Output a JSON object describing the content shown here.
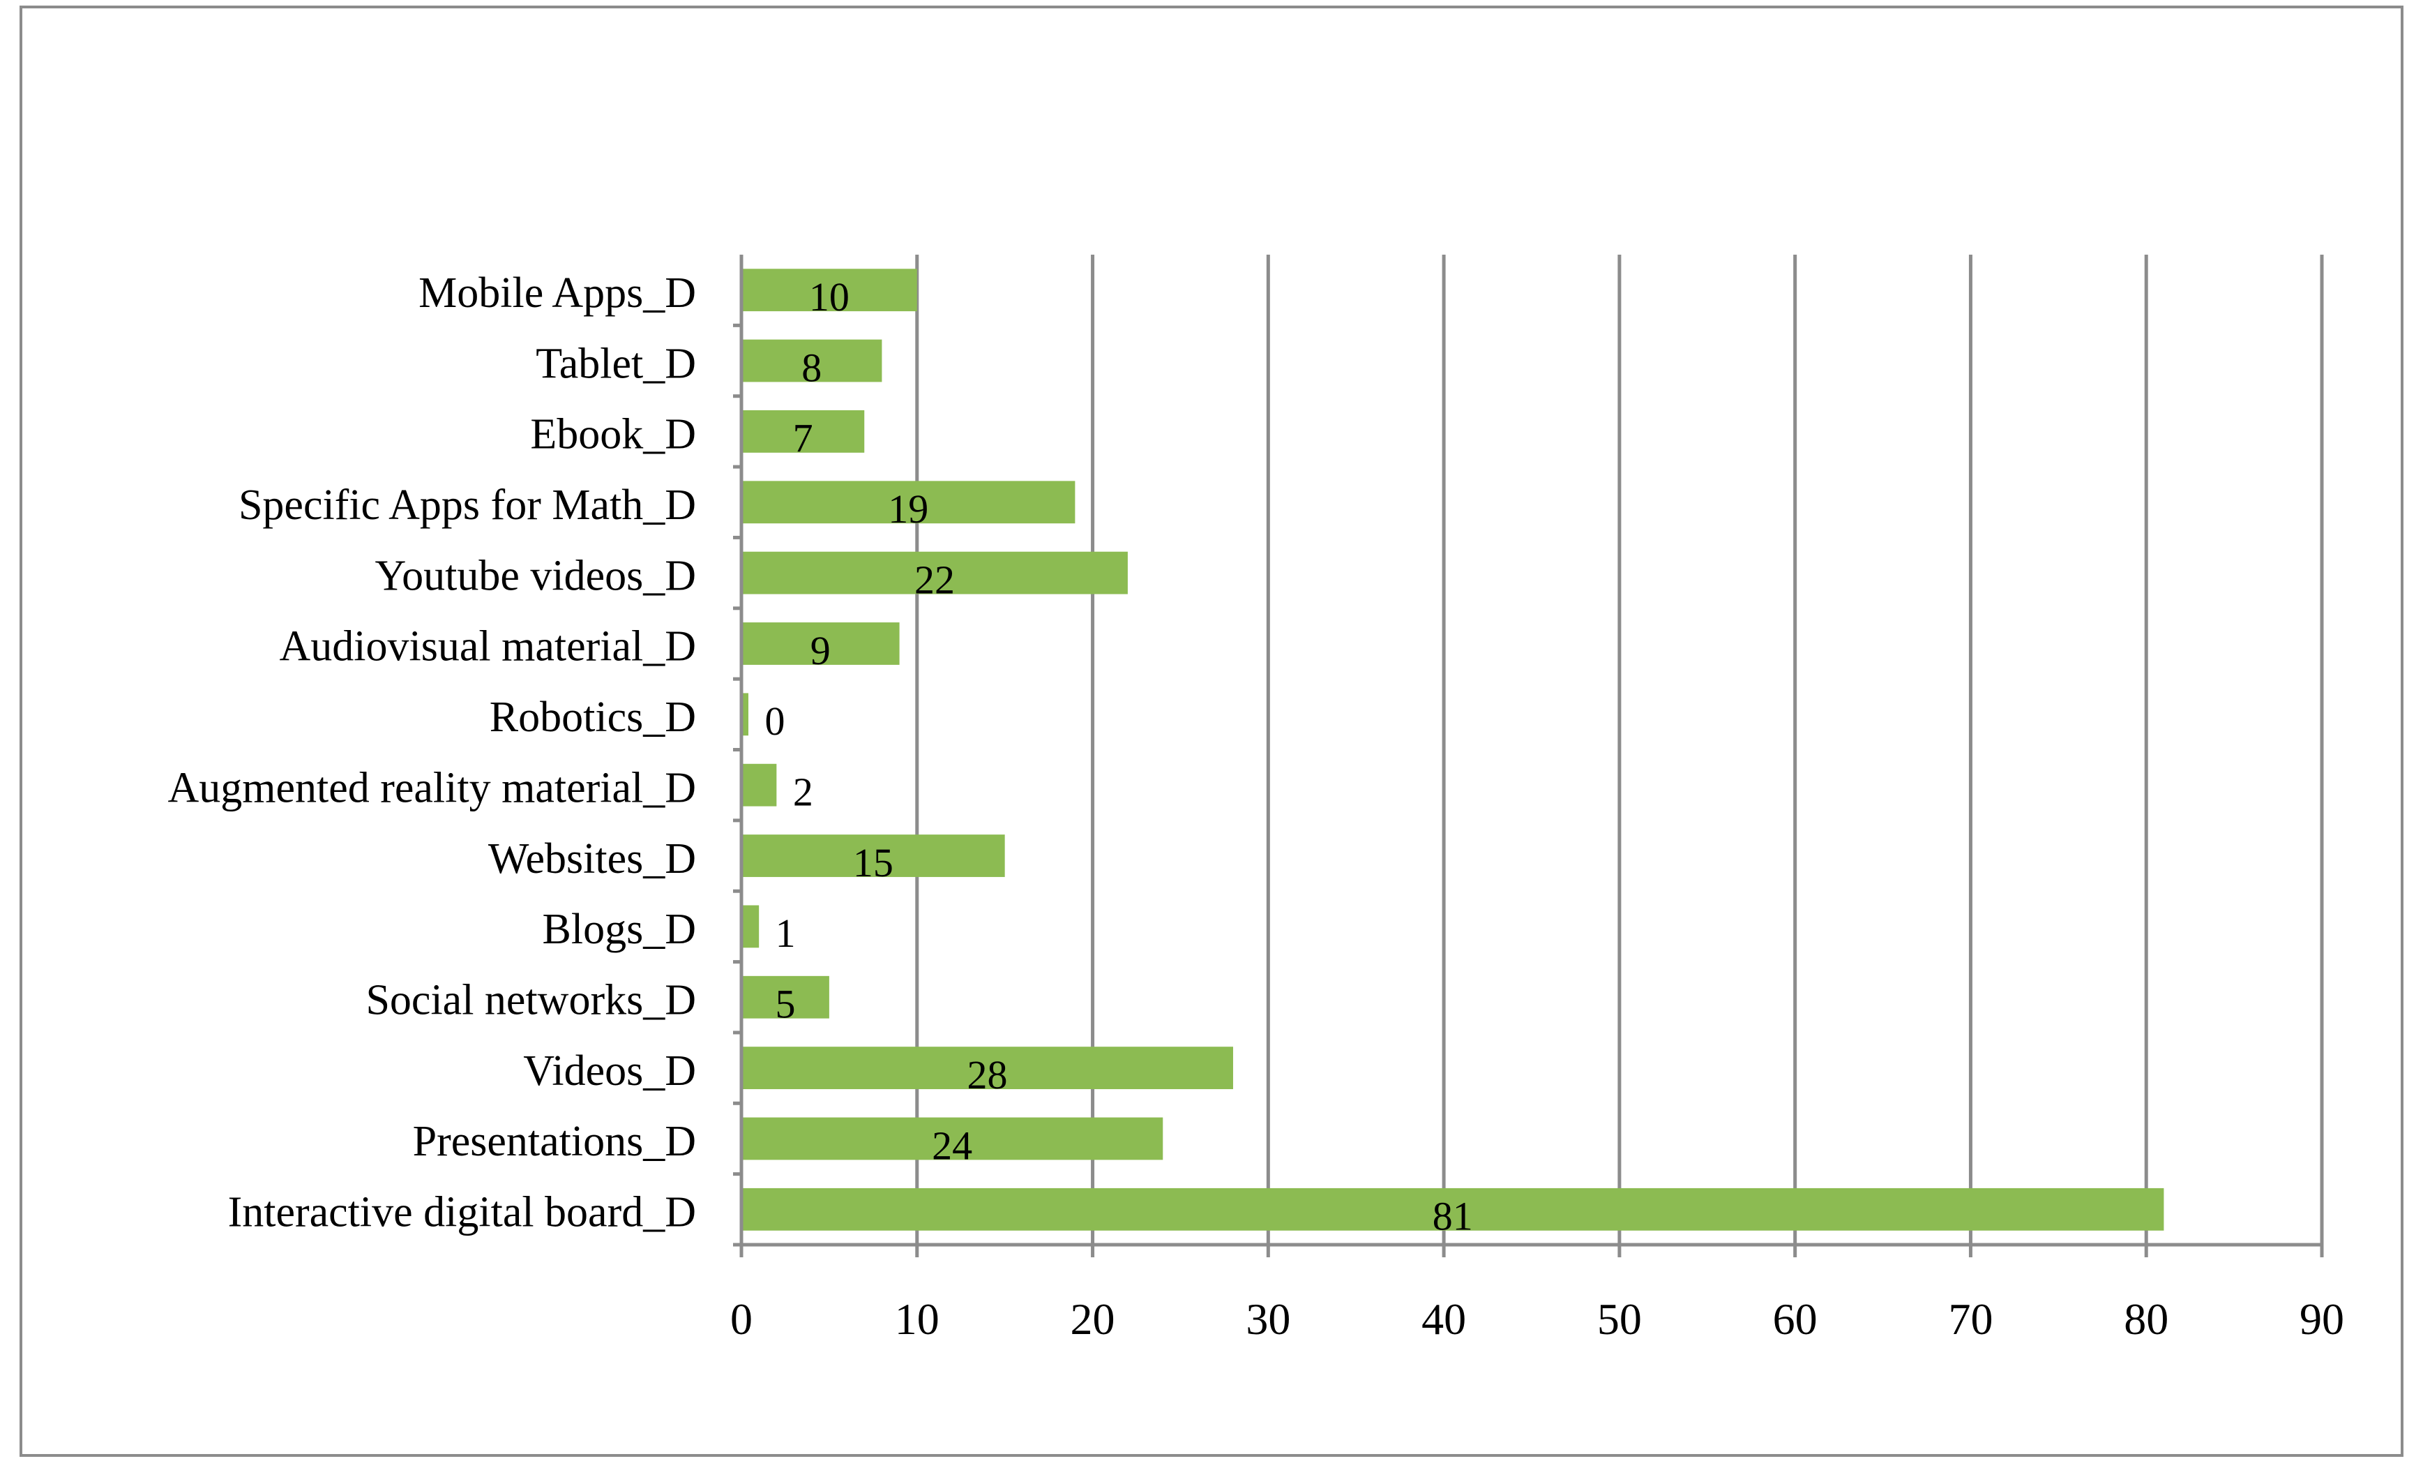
{
  "chart_data": {
    "type": "bar",
    "orientation": "horizontal",
    "title": "",
    "xlabel": "",
    "ylabel": "",
    "categories": [
      "Interactive digital board_D",
      "Presentations_D",
      "Videos_D",
      "Social networks_D",
      "Blogs_D",
      "Websites_D",
      "Augmented reality material_D",
      "Robotics_D",
      "Audiovisual material_D",
      "Youtube videos_D",
      "Specific Apps for Math_D",
      "Ebook_D",
      "Tablet_D",
      "Mobile Apps_D"
    ],
    "values": [
      81,
      24,
      28,
      5,
      1,
      15,
      2,
      0,
      9,
      22,
      19,
      7,
      8,
      10
    ],
    "data_labels": [
      "81",
      "24",
      "28",
      "5",
      "1",
      "15",
      "2",
      "0",
      "9",
      "22",
      "19",
      "7",
      "8",
      "10"
    ],
    "xlim": [
      0,
      90
    ],
    "xticks": [
      0,
      10,
      20,
      30,
      40,
      50,
      60,
      70,
      80,
      90
    ],
    "xtick_labels": [
      "0",
      "10",
      "20",
      "30",
      "40",
      "50",
      "60",
      "70",
      "80",
      "90"
    ],
    "grid": "vertical",
    "legend": "none",
    "colors": {
      "bar": "#8cbb52",
      "grid": "#8c8c8c",
      "frame": "#8c8c8c"
    }
  }
}
